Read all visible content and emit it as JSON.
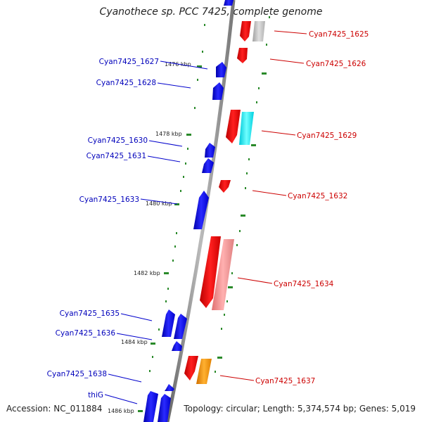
{
  "title": "Cyanothece sp. PCC 7425, complete genome",
  "accession": "Accession: NC_011884",
  "summary": "Topology: circular; Length: 5,374,574 bp; Genes: 5,019",
  "colors": {
    "backbone": "#888888",
    "ticks": "#2a8a2a",
    "forward_label": "#0000bb",
    "reverse_label": "#cc0000"
  },
  "scale_labels": [
    "1476 kbp",
    "1478 kbp",
    "1480 kbp",
    "1482 kbp",
    "1484 kbp",
    "1486 kbp"
  ],
  "forward_genes": [
    "Cyan7425_1627",
    "Cyan7425_1628",
    "Cyan7425_1630",
    "Cyan7425_1631",
    "Cyan7425_1633",
    "Cyan7425_1635",
    "Cyan7425_1636",
    "Cyan7425_1638",
    "thiG"
  ],
  "reverse_genes": [
    "Cyan7425_1625",
    "Cyan7425_1626",
    "Cyan7425_1629",
    "Cyan7425_1632",
    "Cyan7425_1634",
    "Cyan7425_1637"
  ]
}
